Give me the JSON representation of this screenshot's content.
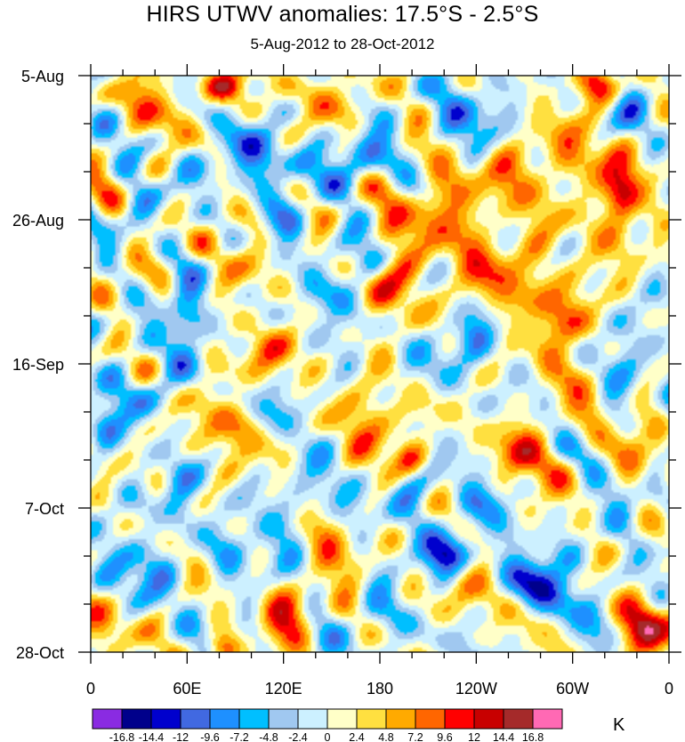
{
  "chart_data": {
    "type": "heatmap",
    "title": "HIRS UTWV anomalies: 17.5°S - 2.5°S",
    "subtitle": "5-Aug-2012 to 28-Oct-2012",
    "x_ticks": [
      "0",
      "60E",
      "120E",
      "180",
      "120W",
      "60W",
      "0"
    ],
    "x_tick_values": [
      0,
      60,
      120,
      180,
      240,
      300,
      360
    ],
    "y_ticks": [
      "5-Aug",
      "26-Aug",
      "16-Sep",
      "7-Oct",
      "28-Oct"
    ],
    "y_tick_days": [
      0,
      21,
      42,
      63,
      84
    ],
    "xlim": [
      0,
      360
    ],
    "ylim_days": [
      0,
      84
    ],
    "y_axis_inverted": true,
    "units": "K",
    "levels": [
      -16.8,
      -14.4,
      -12,
      -9.6,
      -7.2,
      -4.8,
      -2.4,
      0,
      2.4,
      4.8,
      7.2,
      9.6,
      12,
      14.4,
      16.8
    ],
    "level_labels": [
      "-16.8",
      "-14.4",
      "-12",
      "-9.6",
      "-7.2",
      "-4.8",
      "-2.4",
      "0",
      "2.4",
      "4.8",
      "7.2",
      "9.6",
      "12",
      "14.4",
      "16.8"
    ],
    "colors": [
      "#8a2be2",
      "#00008b",
      "#0000cd",
      "#4169e1",
      "#1e90ff",
      "#00bfff",
      "#a0c8f0",
      "#ccf0ff",
      "#ffffc8",
      "#ffe040",
      "#ffaa00",
      "#ff6600",
      "#ff0000",
      "#c80000",
      "#a52a2a",
      "#ff69b4"
    ],
    "features": [
      {
        "lon": 82,
        "day": 1.5,
        "amp": 13,
        "sx": 9,
        "sy": 1.6
      },
      {
        "lon": 315,
        "day": 1.5,
        "amp": 13,
        "sx": 9,
        "sy": 1.8
      },
      {
        "lon": 40,
        "day": 4,
        "amp": 6,
        "sx": 14,
        "sy": 3
      },
      {
        "lon": 150,
        "day": 3,
        "amp": 7,
        "sx": 12,
        "sy": 3
      },
      {
        "lon": 235,
        "day": 6,
        "amp": -8,
        "sx": 15,
        "sy": 3.5
      },
      {
        "lon": 338,
        "day": 4,
        "amp": -7,
        "sx": 8,
        "sy": 3
      },
      {
        "lon": 98,
        "day": 12,
        "amp": -8,
        "sx": 20,
        "sy": 3
      },
      {
        "lon": 165,
        "day": 13,
        "amp": -9,
        "sx": 18,
        "sy": 3
      },
      {
        "lon": 290,
        "day": 13,
        "amp": 6,
        "sx": 35,
        "sy": 4
      },
      {
        "lon": 330,
        "day": 19,
        "amp": 12,
        "sx": 8,
        "sy": 4
      },
      {
        "lon": 210,
        "day": 20,
        "amp": 7,
        "sx": 30,
        "sy": 5
      },
      {
        "lon": 30,
        "day": 20,
        "amp": -5,
        "sx": 9,
        "sy": 3
      },
      {
        "lon": 120,
        "day": 22,
        "amp": -6,
        "sx": 12,
        "sy": 3
      },
      {
        "lon": 175,
        "day": 26,
        "amp": -8,
        "sx": 8,
        "sy": 3
      },
      {
        "lon": 180,
        "day": 31,
        "amp": 15,
        "sx": 10,
        "sy": 3
      },
      {
        "lon": 160,
        "day": 32,
        "amp": -10,
        "sx": 12,
        "sy": 3
      },
      {
        "lon": 60,
        "day": 32,
        "amp": -12,
        "sx": 9,
        "sy": 6
      },
      {
        "lon": 70,
        "day": 27,
        "amp": 6,
        "sx": 25,
        "sy": 4
      },
      {
        "lon": 260,
        "day": 30,
        "amp": 6,
        "sx": 30,
        "sy": 5
      },
      {
        "lon": 240,
        "day": 38,
        "amp": -9,
        "sx": 9,
        "sy": 3
      },
      {
        "lon": 332,
        "day": 40,
        "amp": -9,
        "sx": 9,
        "sy": 3
      },
      {
        "lon": 298,
        "day": 38,
        "amp": 6,
        "sx": 15,
        "sy": 5
      },
      {
        "lon": 110,
        "day": 41,
        "amp": 6,
        "sx": 18,
        "sy": 3
      },
      {
        "lon": 215,
        "day": 40,
        "amp": -4,
        "sx": 10,
        "sy": 3
      },
      {
        "lon": 28,
        "day": 46,
        "amp": -5,
        "sx": 15,
        "sy": 3
      },
      {
        "lon": 175,
        "day": 50,
        "amp": 9,
        "sx": 12,
        "sy": 3
      },
      {
        "lon": 120,
        "day": 48,
        "amp": -4,
        "sx": 12,
        "sy": 3
      },
      {
        "lon": 80,
        "day": 52,
        "amp": 6,
        "sx": 20,
        "sy": 3
      },
      {
        "lon": 275,
        "day": 55,
        "amp": 7,
        "sx": 15,
        "sy": 4
      },
      {
        "lon": 340,
        "day": 56,
        "amp": 6,
        "sx": 9,
        "sy": 5
      },
      {
        "lon": 200,
        "day": 56,
        "amp": 13,
        "sx": 8,
        "sy": 2
      },
      {
        "lon": 10,
        "day": 53,
        "amp": -7,
        "sx": 8,
        "sy": 2.5
      },
      {
        "lon": 55,
        "day": 60,
        "amp": -8,
        "sx": 8,
        "sy": 4
      },
      {
        "lon": 200,
        "day": 60,
        "amp": -8,
        "sx": 10,
        "sy": 3
      },
      {
        "lon": 135,
        "day": 63,
        "amp": -5,
        "sx": 15,
        "sy": 4
      },
      {
        "lon": 240,
        "day": 64,
        "amp": -5,
        "sx": 14,
        "sy": 3
      },
      {
        "lon": 330,
        "day": 62,
        "amp": -5,
        "sx": 10,
        "sy": 3
      },
      {
        "lon": 220,
        "day": 70,
        "amp": -12,
        "sx": 12,
        "sy": 2
      },
      {
        "lon": 280,
        "day": 74,
        "amp": -11,
        "sx": 18,
        "sy": 3
      },
      {
        "lon": 25,
        "day": 72,
        "amp": -7,
        "sx": 15,
        "sy": 3
      },
      {
        "lon": 95,
        "day": 70,
        "amp": -5,
        "sx": 15,
        "sy": 3
      },
      {
        "lon": 150,
        "day": 68,
        "amp": 7,
        "sx": 12,
        "sy": 3
      },
      {
        "lon": 235,
        "day": 76,
        "amp": 6,
        "sx": 15,
        "sy": 3
      },
      {
        "lon": 125,
        "day": 78,
        "amp": 9,
        "sx": 12,
        "sy": 3
      },
      {
        "lon": 345,
        "day": 81,
        "amp": 12,
        "sx": 10,
        "sy": 3
      },
      {
        "lon": 82,
        "day": 83.5,
        "amp": 10,
        "sx": 7,
        "sy": 1.5
      },
      {
        "lon": 185,
        "day": 80,
        "amp": -5,
        "sx": 15,
        "sy": 3
      },
      {
        "lon": 5,
        "day": 80,
        "amp": 5,
        "sx": 8,
        "sy": 3
      }
    ]
  }
}
